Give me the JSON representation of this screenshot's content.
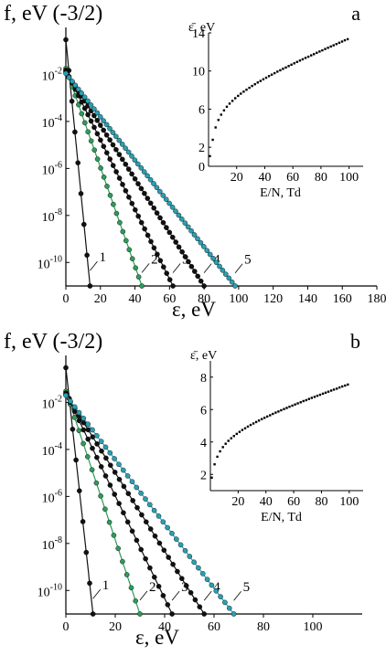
{
  "chart_data": [
    {
      "type": "scatter",
      "panel_label": "a",
      "ylabel": "f, eV (-3/2)",
      "xlabel": "ε, eV",
      "yscale": "log",
      "xlim": [
        0,
        180
      ],
      "ylim": [
        1e-11,
        1
      ],
      "xticks": [
        "0",
        "20",
        "40",
        "60",
        "80",
        "100",
        "120",
        "140",
        "160",
        "180"
      ],
      "yticks": [
        {
          "base": "10",
          "exp": "-2",
          "value": 0.01
        },
        {
          "base": "10",
          "exp": "-4",
          "value": 0.0001
        },
        {
          "base": "10",
          "exp": "-6",
          "value": 1e-06
        },
        {
          "base": "10",
          "exp": "-8",
          "value": 1e-08
        },
        {
          "base": "10",
          "exp": "-10",
          "value": 1e-10
        }
      ],
      "series": [
        {
          "name": "1",
          "color": "#111111",
          "f0": 0.3,
          "eend": 14,
          "tau": 2.9
        },
        {
          "name": "2",
          "color": "#2f9a5a",
          "f0": 0.018,
          "eend": 44,
          "tau": 5.2
        },
        {
          "name": "3",
          "color": "#111111",
          "f0": 0.015,
          "eend": 62,
          "tau": 7.0
        },
        {
          "name": "4",
          "color": "#111111",
          "f0": 0.013,
          "eend": 80,
          "tau": 9.0
        },
        {
          "name": "5",
          "color": "#2a9fb0",
          "f0": 0.011,
          "eend": 98,
          "tau": 10.9
        }
      ],
      "inset": {
        "type": "scatter",
        "ylabel": "ε̄, eV",
        "xlabel": "E/N, Td",
        "xlim": [
          0,
          110
        ],
        "ylim": [
          0,
          14
        ],
        "xticks": [
          "20",
          "40",
          "60",
          "80",
          "100"
        ],
        "yticks": [
          "0",
          "2",
          "6",
          "10",
          "14"
        ],
        "x": [
          1,
          3,
          5,
          7,
          9,
          11,
          13,
          15,
          17,
          19,
          21,
          23,
          25,
          27,
          29,
          31,
          33,
          35,
          37,
          39,
          41,
          43,
          45,
          47,
          49,
          51,
          53,
          55,
          57,
          59,
          61,
          63,
          65,
          67,
          69,
          71,
          73,
          75,
          77,
          79,
          81,
          83,
          85,
          87,
          89,
          91,
          93,
          95,
          97,
          99
        ],
        "y": [
          1.06,
          2.78,
          4.08,
          4.86,
          5.42,
          5.87,
          6.25,
          6.58,
          6.87,
          7.14,
          7.39,
          7.62,
          7.83,
          8.04,
          8.24,
          8.43,
          8.61,
          8.79,
          8.96,
          9.13,
          9.29,
          9.46,
          9.62,
          9.77,
          9.93,
          10.08,
          10.23,
          10.37,
          10.52,
          10.66,
          10.81,
          10.95,
          11.09,
          11.23,
          11.37,
          11.5,
          11.64,
          11.77,
          11.91,
          12.04,
          12.17,
          12.31,
          12.44,
          12.57,
          12.7,
          12.83,
          12.96,
          13.09,
          13.22,
          13.34
        ]
      }
    },
    {
      "type": "scatter",
      "panel_label": "b",
      "ylabel": "f, eV (-3/2)",
      "xlabel": "ε, eV",
      "yscale": "log",
      "xlim": [
        0,
        120
      ],
      "ylim": [
        1e-11,
        1
      ],
      "xticks": [
        "0",
        "20",
        "40",
        "60",
        "80",
        "100"
      ],
      "yticks": [
        {
          "base": "10",
          "exp": "-2",
          "value": 0.01
        },
        {
          "base": "10",
          "exp": "-4",
          "value": 0.0001
        },
        {
          "base": "10",
          "exp": "-6",
          "value": 1e-06
        },
        {
          "base": "10",
          "exp": "-8",
          "value": 1e-08
        },
        {
          "base": "10",
          "exp": "-10",
          "value": 1e-10
        }
      ],
      "series": [
        {
          "name": "1",
          "color": "#111111",
          "f0": 0.3,
          "eend": 11,
          "tau": 2.2
        },
        {
          "name": "2",
          "color": "#2f9a5a",
          "f0": 0.03,
          "eend": 30,
          "tau": 3.45
        },
        {
          "name": "3",
          "color": "#111111",
          "f0": 0.025,
          "eend": 43,
          "tau": 4.9
        },
        {
          "name": "4",
          "color": "#111111",
          "f0": 0.022,
          "eend": 56,
          "tau": 6.35
        },
        {
          "name": "5",
          "color": "#2a9fb0",
          "f0": 0.02,
          "eend": 68,
          "tau": 7.7
        }
      ],
      "inset": {
        "type": "scatter",
        "ylabel": "ε̄, eV",
        "xlabel": "E/N, Td",
        "xlim": [
          0,
          110
        ],
        "ylim": [
          1,
          9
        ],
        "xticks": [
          "20",
          "40",
          "60",
          "80",
          "100"
        ],
        "yticks": [
          "2",
          "4",
          "6",
          "8"
        ],
        "x": [
          1,
          3,
          5,
          7,
          9,
          11,
          13,
          15,
          17,
          19,
          21,
          23,
          25,
          27,
          29,
          31,
          33,
          35,
          37,
          39,
          41,
          43,
          45,
          47,
          49,
          51,
          53,
          55,
          57,
          59,
          61,
          63,
          65,
          67,
          69,
          71,
          73,
          75,
          77,
          79,
          81,
          83,
          85,
          87,
          89,
          91,
          93,
          95,
          97,
          99
        ],
        "y": [
          1.8,
          2.62,
          3.09,
          3.42,
          3.68,
          3.89,
          4.07,
          4.23,
          4.37,
          4.5,
          4.62,
          4.74,
          4.84,
          4.95,
          5.05,
          5.14,
          5.23,
          5.32,
          5.41,
          5.49,
          5.57,
          5.65,
          5.73,
          5.81,
          5.88,
          5.96,
          6.03,
          6.1,
          6.17,
          6.24,
          6.31,
          6.38,
          6.45,
          6.52,
          6.58,
          6.65,
          6.72,
          6.78,
          6.85,
          6.91,
          6.98,
          7.04,
          7.1,
          7.17,
          7.23,
          7.29,
          7.36,
          7.42,
          7.48,
          7.54
        ]
      }
    }
  ]
}
